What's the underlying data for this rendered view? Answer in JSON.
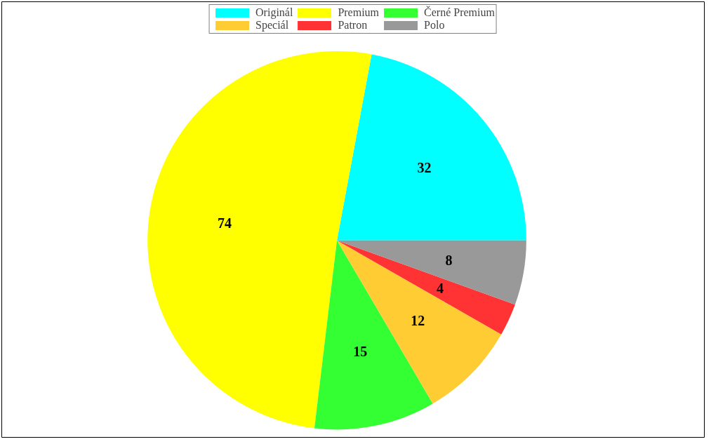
{
  "chart_data": {
    "type": "pie",
    "categories": [
      "Originál",
      "Premium",
      "Černé Premium",
      "Speciál",
      "Patron",
      "Polo"
    ],
    "values": [
      32,
      74,
      15,
      12,
      4,
      8
    ],
    "colors": [
      "#00ffff",
      "#ffff00",
      "#33ff33",
      "#ffcc33",
      "#ff3333",
      "#999999"
    ],
    "data_labels": true,
    "legend": "top"
  }
}
